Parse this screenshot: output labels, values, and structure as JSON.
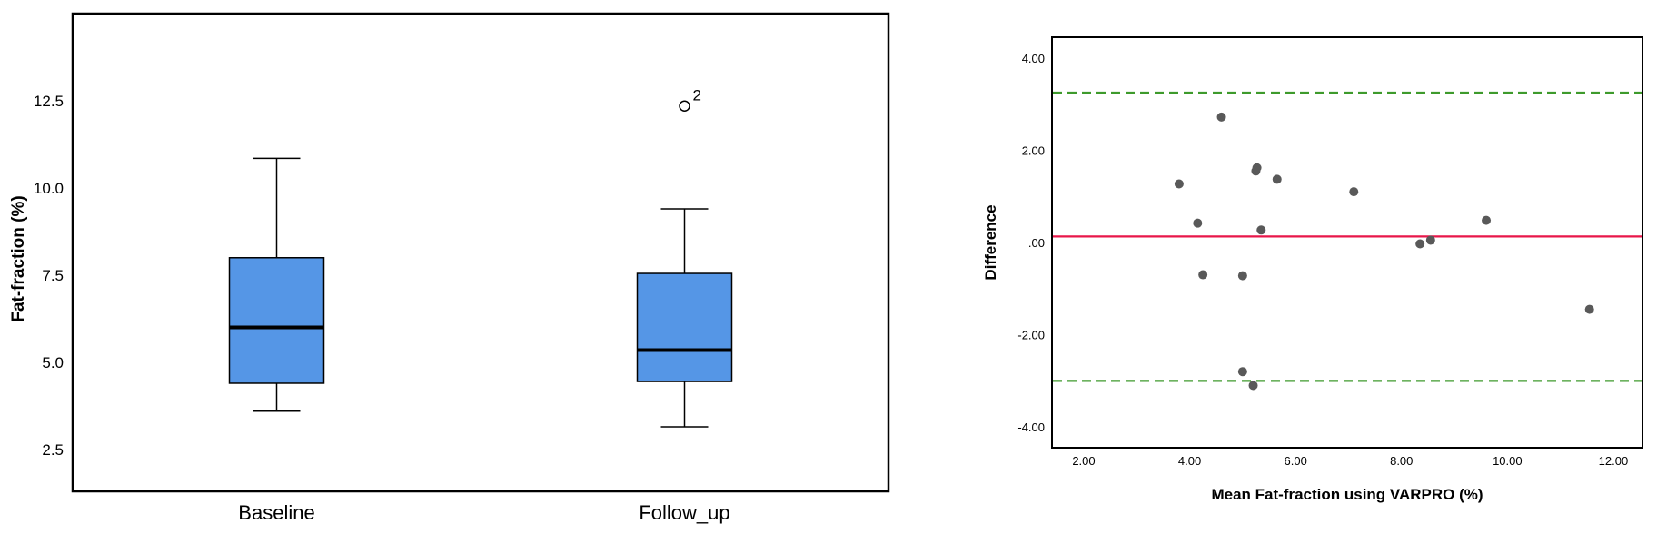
{
  "chart_data": [
    {
      "type": "box",
      "title": "",
      "xlabel": "",
      "ylabel": "Fat-fraction (%)",
      "ylim": [
        1.3,
        15.0
      ],
      "yticks": [
        2.5,
        5.0,
        7.5,
        10.0,
        12.5
      ],
      "ytick_labels": [
        "2.5",
        "5.0",
        "7.5",
        "10.0",
        "12.5"
      ],
      "grid": false,
      "box_color": "#5596e6",
      "categories": [
        "Baseline",
        "Follow_up"
      ],
      "boxes": [
        {
          "category": "Baseline",
          "whisker_low": 3.6,
          "q1": 4.4,
          "median": 6.0,
          "q3": 8.0,
          "whisker_high": 10.85,
          "outliers": []
        },
        {
          "category": "Follow_up",
          "whisker_low": 3.15,
          "q1": 4.45,
          "median": 5.35,
          "q3": 7.55,
          "whisker_high": 9.4,
          "outliers": [
            {
              "value": 12.35,
              "label": "2"
            }
          ]
        }
      ]
    },
    {
      "type": "scatter",
      "title": "",
      "xlabel": "Mean Fat-fraction using VARPRO (%)",
      "ylabel": "Difference",
      "xlim": [
        1.4,
        12.55
      ],
      "ylim": [
        -4.45,
        4.45
      ],
      "xticks": [
        2,
        4,
        6,
        8,
        10,
        12
      ],
      "xtick_labels": [
        "2.00",
        "4.00",
        "6.00",
        "8.00",
        "10.00",
        "12.00"
      ],
      "yticks": [
        -4,
        -2,
        0,
        2,
        4
      ],
      "ytick_labels": [
        "-4.00",
        "-2.00",
        ".00",
        "2.00",
        "4.00"
      ],
      "grid": false,
      "point_color": "#595959",
      "mean_line": {
        "value": 0.13,
        "color": "#e8174a"
      },
      "limit_lines": [
        {
          "value": 3.25,
          "color": "#3e9a2c"
        },
        {
          "value": -3.0,
          "color": "#3e9a2c"
        }
      ],
      "points": [
        {
          "x": 3.8,
          "y": 1.27
        },
        {
          "x": 4.15,
          "y": 0.42
        },
        {
          "x": 4.25,
          "y": -0.7
        },
        {
          "x": 4.6,
          "y": 2.72
        },
        {
          "x": 5.0,
          "y": -0.72
        },
        {
          "x": 5.0,
          "y": -2.8
        },
        {
          "x": 5.2,
          "y": -3.1
        },
        {
          "x": 5.25,
          "y": 1.55
        },
        {
          "x": 5.27,
          "y": 1.62
        },
        {
          "x": 5.35,
          "y": 0.27
        },
        {
          "x": 5.65,
          "y": 1.37
        },
        {
          "x": 7.1,
          "y": 1.1
        },
        {
          "x": 8.35,
          "y": -0.03
        },
        {
          "x": 8.55,
          "y": 0.05
        },
        {
          "x": 9.6,
          "y": 0.48
        },
        {
          "x": 11.55,
          "y": -1.45
        }
      ]
    }
  ]
}
